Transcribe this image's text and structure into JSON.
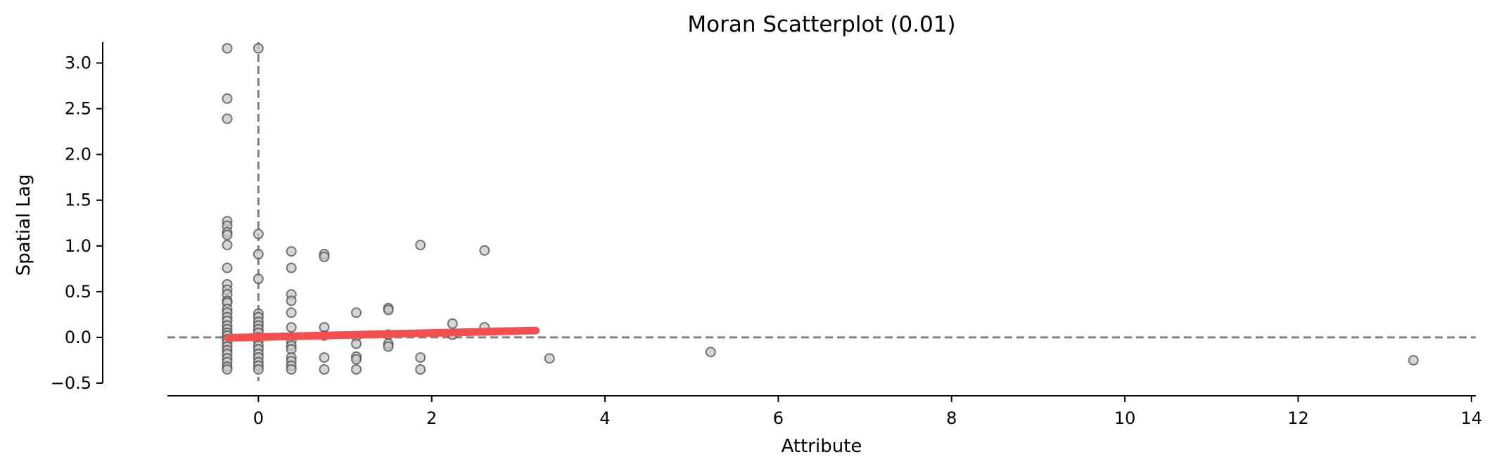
{
  "chart_data": {
    "type": "scatter",
    "title": "Moran Scatterplot (0.01)",
    "xlabel": "Attribute",
    "ylabel": "Spatial Lag",
    "xlim": [
      -1.05,
      14.05
    ],
    "ylim": [
      -0.5,
      3.35
    ],
    "x_ticks": [
      0,
      2,
      4,
      6,
      8,
      10,
      12,
      14
    ],
    "x_tick_labels": [
      "0",
      "2",
      "4",
      "6",
      "8",
      "10",
      "12",
      "14"
    ],
    "y_ticks": [
      -0.5,
      0.0,
      0.5,
      1.0,
      1.5,
      2.0,
      2.5,
      3.0
    ],
    "y_tick_labels": [
      "−0.5",
      "0.0",
      "0.5",
      "1.0",
      "1.5",
      "2.0",
      "2.5",
      "3.0"
    ],
    "grid": false,
    "reference_lines": {
      "x": 0,
      "y": 0,
      "style": "dashed",
      "color": "#808080"
    },
    "fit_line": {
      "x": [
        -0.35,
        3.2
      ],
      "y": [
        -0.004,
        0.075
      ],
      "color": "#f44f4f"
    },
    "point_style": {
      "face": "#c8c8c8",
      "edge": "#404040"
    },
    "points": [
      {
        "x": -0.36,
        "y": 3.16
      },
      {
        "x": -0.36,
        "y": 2.61
      },
      {
        "x": -0.36,
        "y": 2.39
      },
      {
        "x": -0.36,
        "y": 1.27
      },
      {
        "x": -0.36,
        "y": 1.22
      },
      {
        "x": -0.36,
        "y": 1.15
      },
      {
        "x": -0.36,
        "y": 1.12
      },
      {
        "x": -0.36,
        "y": 1.01
      },
      {
        "x": -0.36,
        "y": 0.76
      },
      {
        "x": -0.36,
        "y": 0.58
      },
      {
        "x": -0.36,
        "y": 0.52
      },
      {
        "x": -0.36,
        "y": 0.47
      },
      {
        "x": -0.36,
        "y": 0.4
      },
      {
        "x": -0.36,
        "y": 0.38
      },
      {
        "x": -0.36,
        "y": 0.31
      },
      {
        "x": -0.36,
        "y": 0.27
      },
      {
        "x": -0.36,
        "y": 0.22
      },
      {
        "x": -0.36,
        "y": 0.18
      },
      {
        "x": -0.36,
        "y": 0.13
      },
      {
        "x": -0.36,
        "y": 0.09
      },
      {
        "x": -0.36,
        "y": 0.05
      },
      {
        "x": -0.36,
        "y": 0.02
      },
      {
        "x": -0.36,
        "y": -0.02
      },
      {
        "x": -0.36,
        "y": -0.06
      },
      {
        "x": -0.36,
        "y": -0.1
      },
      {
        "x": -0.36,
        "y": -0.14
      },
      {
        "x": -0.36,
        "y": -0.18
      },
      {
        "x": -0.36,
        "y": -0.23
      },
      {
        "x": -0.36,
        "y": -0.27
      },
      {
        "x": -0.36,
        "y": -0.32
      },
      {
        "x": -0.36,
        "y": -0.35
      },
      {
        "x": 0.0,
        "y": 3.16
      },
      {
        "x": 0.0,
        "y": 1.13
      },
      {
        "x": 0.0,
        "y": 0.91
      },
      {
        "x": 0.0,
        "y": 0.64
      },
      {
        "x": 0.0,
        "y": 0.26
      },
      {
        "x": 0.0,
        "y": 0.22
      },
      {
        "x": 0.0,
        "y": 0.17
      },
      {
        "x": 0.0,
        "y": 0.13
      },
      {
        "x": 0.0,
        "y": 0.09
      },
      {
        "x": 0.0,
        "y": 0.05
      },
      {
        "x": 0.0,
        "y": 0.0
      },
      {
        "x": 0.0,
        "y": -0.04
      },
      {
        "x": 0.0,
        "y": -0.09
      },
      {
        "x": 0.0,
        "y": -0.13
      },
      {
        "x": 0.0,
        "y": -0.18
      },
      {
        "x": 0.0,
        "y": -0.22
      },
      {
        "x": 0.0,
        "y": -0.27
      },
      {
        "x": 0.0,
        "y": -0.31
      },
      {
        "x": 0.0,
        "y": -0.35
      },
      {
        "x": 0.38,
        "y": 0.94
      },
      {
        "x": 0.38,
        "y": 0.76
      },
      {
        "x": 0.38,
        "y": 0.47
      },
      {
        "x": 0.38,
        "y": 0.4
      },
      {
        "x": 0.38,
        "y": 0.27
      },
      {
        "x": 0.38,
        "y": 0.11
      },
      {
        "x": 0.38,
        "y": 0.0
      },
      {
        "x": 0.38,
        "y": -0.04
      },
      {
        "x": 0.38,
        "y": -0.09
      },
      {
        "x": 0.38,
        "y": -0.13
      },
      {
        "x": 0.38,
        "y": -0.22
      },
      {
        "x": 0.38,
        "y": -0.26
      },
      {
        "x": 0.38,
        "y": -0.31
      },
      {
        "x": 0.38,
        "y": -0.35
      },
      {
        "x": 0.76,
        "y": 0.91
      },
      {
        "x": 0.76,
        "y": 0.88
      },
      {
        "x": 0.76,
        "y": 0.11
      },
      {
        "x": 0.76,
        "y": 0.02
      },
      {
        "x": 0.76,
        "y": -0.22
      },
      {
        "x": 0.76,
        "y": -0.35
      },
      {
        "x": 1.13,
        "y": 0.27
      },
      {
        "x": 1.13,
        "y": 0.01
      },
      {
        "x": 1.13,
        "y": -0.07
      },
      {
        "x": 1.13,
        "y": -0.21
      },
      {
        "x": 1.13,
        "y": -0.24
      },
      {
        "x": 1.13,
        "y": -0.35
      },
      {
        "x": 1.5,
        "y": 0.32
      },
      {
        "x": 1.5,
        "y": 0.3
      },
      {
        "x": 1.5,
        "y": 0.03
      },
      {
        "x": 1.5,
        "y": -0.07
      },
      {
        "x": 1.5,
        "y": -0.1
      },
      {
        "x": 1.87,
        "y": 1.01
      },
      {
        "x": 1.87,
        "y": -0.22
      },
      {
        "x": 1.87,
        "y": -0.35
      },
      {
        "x": 2.24,
        "y": 0.15
      },
      {
        "x": 2.24,
        "y": 0.03
      },
      {
        "x": 2.61,
        "y": 0.95
      },
      {
        "x": 2.61,
        "y": 0.11
      },
      {
        "x": 3.36,
        "y": -0.23
      },
      {
        "x": 5.22,
        "y": -0.16
      },
      {
        "x": 13.33,
        "y": -0.25
      }
    ]
  }
}
